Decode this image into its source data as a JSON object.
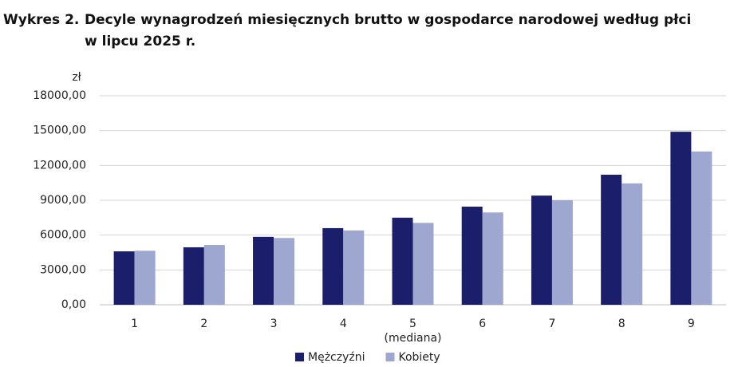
{
  "chart_data": {
    "type": "bar",
    "title_prefix": "Wykres 2.",
    "title_lines": [
      "Decyle wynagrodzeń miesięcznych brutto w gospodarce narodowej według płci",
      "w lipcu 2025 r."
    ],
    "y_unit": "zł",
    "categories": [
      "1",
      "2",
      "3",
      "4",
      "5",
      "6",
      "7",
      "8",
      "9"
    ],
    "annotations": [
      {
        "text": "(mediana)",
        "category": "5"
      }
    ],
    "series": [
      {
        "name": "Mężczyźni",
        "color": "#1b1f6b",
        "values": [
          4600,
          4950,
          5850,
          6600,
          7500,
          8450,
          9400,
          11200,
          14900
        ]
      },
      {
        "name": "Kobiety",
        "color": "#9ea7cf",
        "values": [
          4650,
          5150,
          5750,
          6400,
          7050,
          7950,
          9000,
          10450,
          13200
        ]
      }
    ],
    "ylim": [
      0,
      18000
    ],
    "yticks": [
      {
        "value": 0,
        "label": "0,00"
      },
      {
        "value": 3000,
        "label": "3000,00"
      },
      {
        "value": 6000,
        "label": "6000,00"
      },
      {
        "value": 9000,
        "label": "9000,00"
      },
      {
        "value": 12000,
        "label": "12000,00"
      },
      {
        "value": 15000,
        "label": "15000,00"
      },
      {
        "value": 18000,
        "label": "18000,00"
      }
    ],
    "grid": true,
    "legend": "bottom"
  }
}
